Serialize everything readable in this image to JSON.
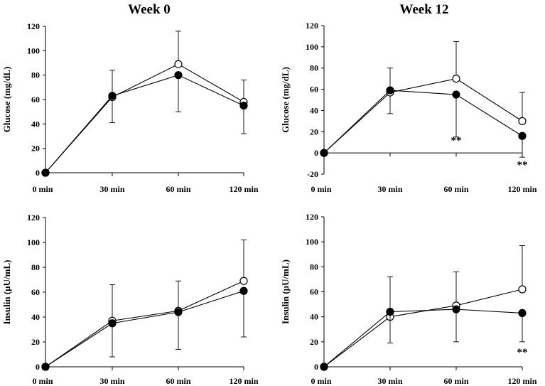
{
  "figure": {
    "titles": [
      "Week 0",
      "Week 12"
    ]
  },
  "chart_data": [
    {
      "id": "glucose-week0",
      "type": "line",
      "title": "Week 0",
      "ylabel": "Glucose (mg/dL)",
      "xlabel": "",
      "categories": [
        "0 min",
        "30 min",
        "60 min",
        "120 min"
      ],
      "ylim": [
        0,
        120
      ],
      "yticks": [
        0,
        20,
        40,
        60,
        80,
        100,
        120
      ],
      "series": [
        {
          "name": "open-circles",
          "marker": "open",
          "values": [
            0,
            62,
            89,
            58
          ],
          "err_up": [
            0,
            22,
            27,
            18
          ],
          "err_down": [
            0,
            21,
            0,
            0
          ]
        },
        {
          "name": "filled-circles",
          "marker": "filled",
          "values": [
            0,
            63,
            80,
            55
          ],
          "err_up": [
            0,
            0,
            0,
            0
          ],
          "err_down": [
            0,
            0,
            30,
            23
          ]
        }
      ],
      "annotations": []
    },
    {
      "id": "glucose-week12",
      "type": "line",
      "title": "Week 12",
      "ylabel": "Glucose (mg/dL)",
      "xlabel": "",
      "categories": [
        "0 min",
        "30 min",
        "60 min",
        "120 min"
      ],
      "ylim": [
        -20,
        120
      ],
      "yticks": [
        -20,
        0,
        20,
        40,
        60,
        80,
        100,
        120
      ],
      "series": [
        {
          "name": "open-circles",
          "marker": "open",
          "values": [
            0,
            57,
            70,
            30
          ],
          "err_up": [
            0,
            23,
            35,
            27
          ],
          "err_down": [
            0,
            20,
            0,
            0
          ]
        },
        {
          "name": "filled-circles",
          "marker": "filled",
          "values": [
            0,
            59,
            55,
            16
          ],
          "err_up": [
            0,
            0,
            0,
            0
          ],
          "err_down": [
            0,
            0,
            40,
            20
          ]
        }
      ],
      "annotations": [
        {
          "text": "**",
          "category_index": 2,
          "y": 12
        },
        {
          "text": "**",
          "category_index": 3,
          "y": -11
        }
      ]
    },
    {
      "id": "insulin-week0",
      "type": "line",
      "title": "",
      "ylabel": "Insulin (µU/mL)",
      "xlabel": "",
      "categories": [
        "0 min",
        "30 min",
        "60 min",
        "120 min"
      ],
      "ylim": [
        0,
        120
      ],
      "yticks": [
        0,
        20,
        40,
        60,
        80,
        100,
        120
      ],
      "series": [
        {
          "name": "open-circles",
          "marker": "open",
          "values": [
            0,
            37,
            45,
            69
          ],
          "err_up": [
            0,
            29,
            24,
            33
          ],
          "err_down": [
            0,
            0,
            0,
            0
          ]
        },
        {
          "name": "filled-circles",
          "marker": "filled",
          "values": [
            0,
            35,
            44,
            61
          ],
          "err_up": [
            0,
            0,
            0,
            0
          ],
          "err_down": [
            0,
            27,
            30,
            37
          ]
        }
      ],
      "annotations": []
    },
    {
      "id": "insulin-week12",
      "type": "line",
      "title": "",
      "ylabel": "Insulin (µU/mL)",
      "xlabel": "",
      "categories": [
        "0 min",
        "30 min",
        "60 min",
        "120 min"
      ],
      "ylim": [
        0,
        120
      ],
      "yticks": [
        0,
        20,
        40,
        60,
        80,
        100,
        120
      ],
      "series": [
        {
          "name": "open-circles",
          "marker": "open",
          "values": [
            0,
            40,
            49,
            62
          ],
          "err_up": [
            0,
            32,
            27,
            35
          ],
          "err_down": [
            0,
            0,
            0,
            0
          ]
        },
        {
          "name": "filled-circles",
          "marker": "filled",
          "values": [
            0,
            44,
            46,
            43
          ],
          "err_up": [
            0,
            0,
            0,
            0
          ],
          "err_down": [
            0,
            25,
            26,
            23
          ]
        }
      ],
      "annotations": [
        {
          "text": "**",
          "category_index": 3,
          "y": 12
        }
      ]
    }
  ]
}
